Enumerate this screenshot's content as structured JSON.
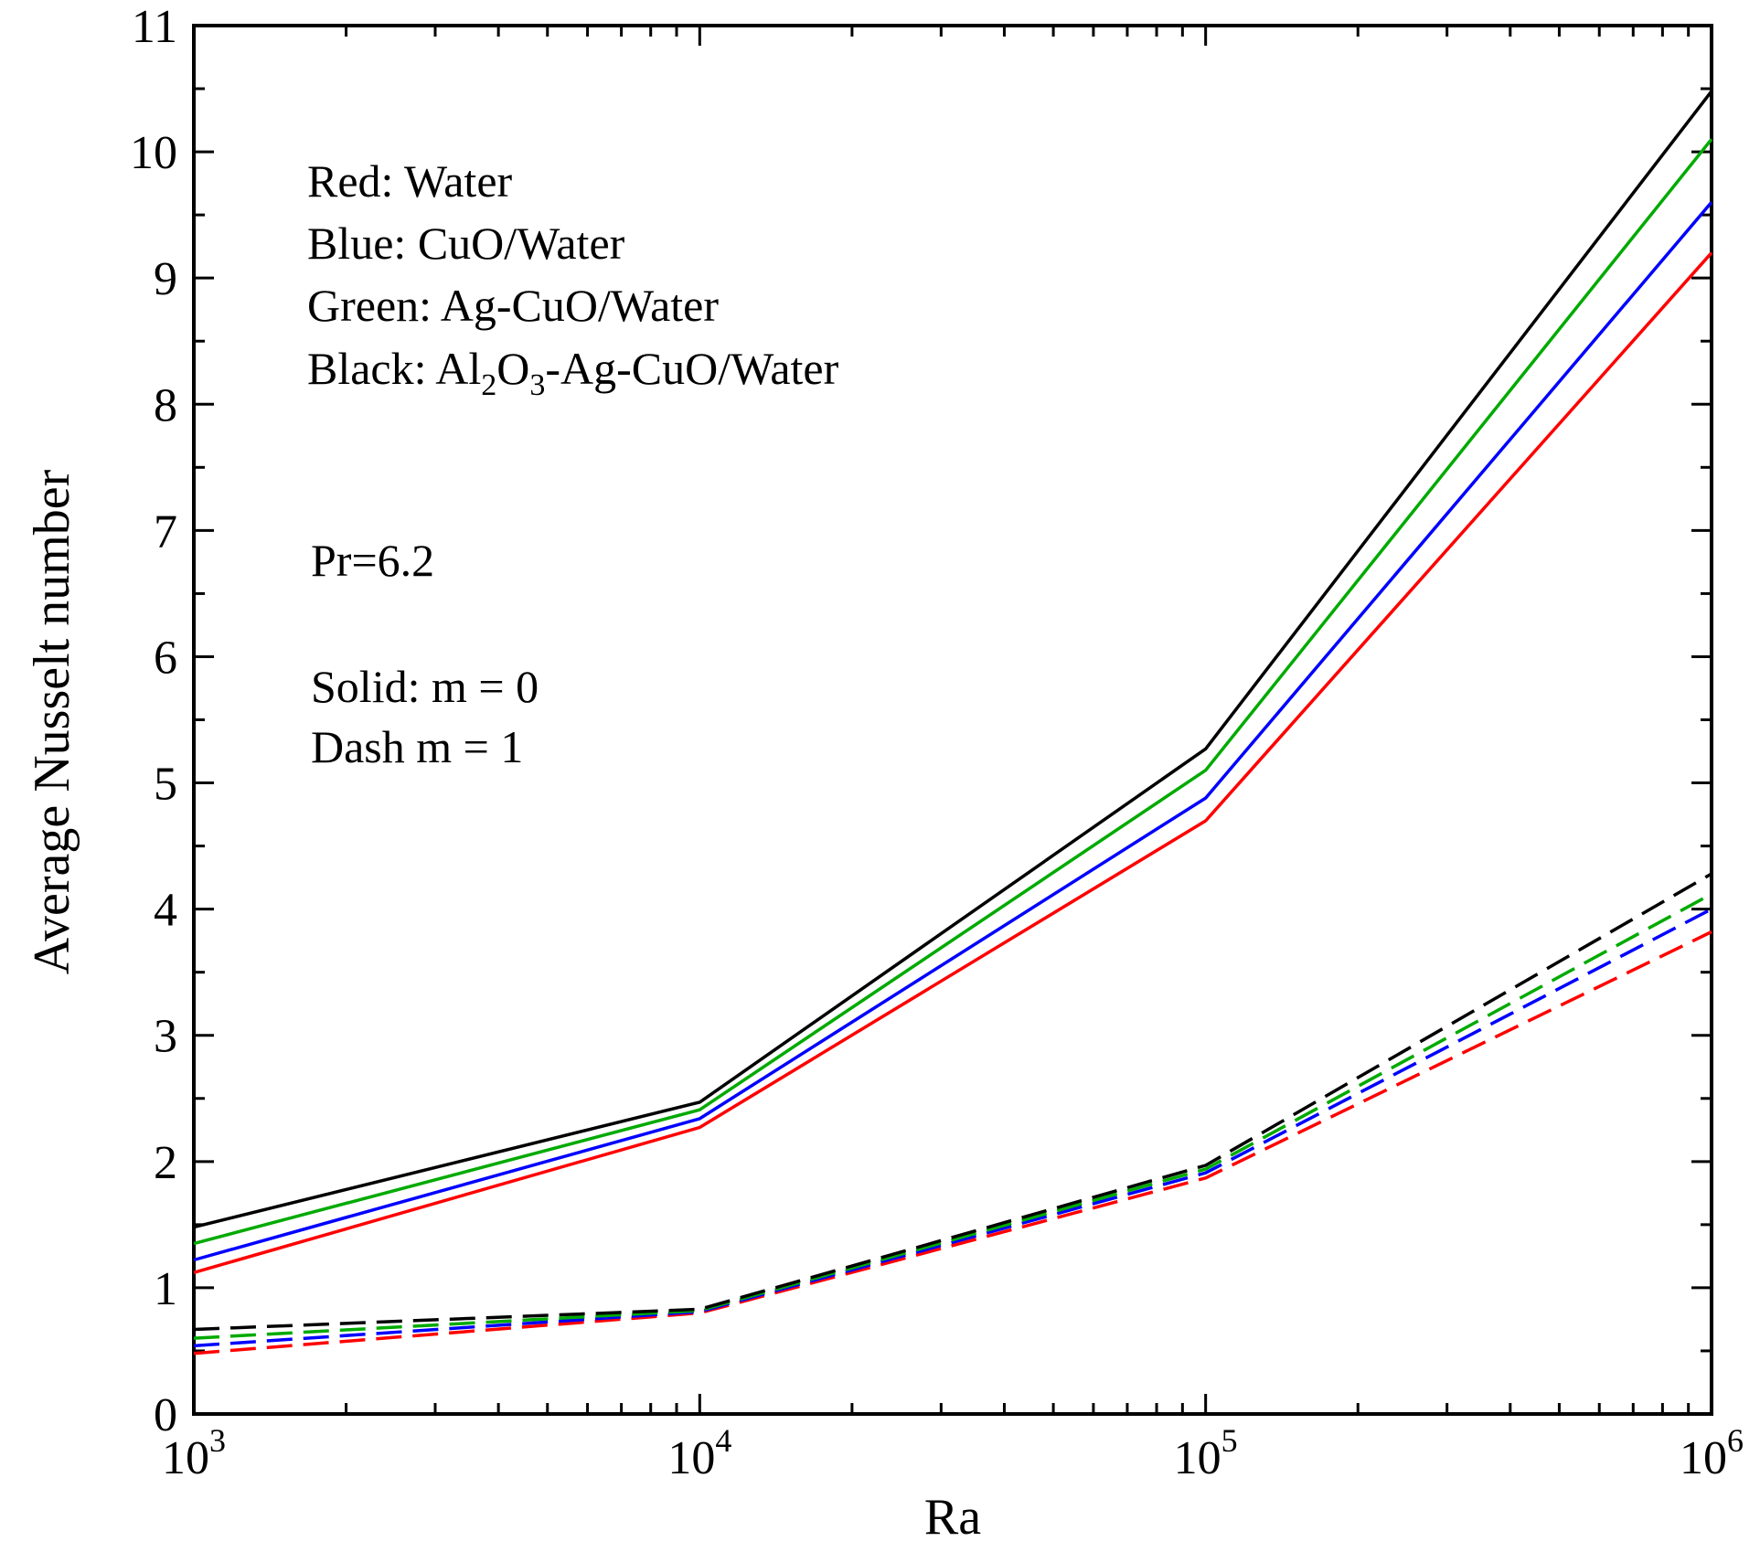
{
  "chart_data": {
    "type": "line",
    "title": "",
    "xlabel": "Ra",
    "ylabel": "Average Nusselt number",
    "xscale": "log",
    "xlim": [
      1000,
      1000000
    ],
    "ylim": [
      0,
      11
    ],
    "grid": false,
    "x": [
      1000,
      10000,
      100000,
      1000000
    ],
    "x_tick_labels": [
      {
        "value": 1000,
        "base": "10",
        "exp": "3"
      },
      {
        "value": 10000,
        "base": "10",
        "exp": "4"
      },
      {
        "value": 100000,
        "base": "10",
        "exp": "5"
      },
      {
        "value": 1000000,
        "base": "10",
        "exp": "6"
      }
    ],
    "y_ticks": [
      0,
      1,
      2,
      3,
      4,
      5,
      6,
      7,
      8,
      9,
      10,
      11
    ],
    "series": [
      {
        "name": "Water, m = 0",
        "color": "#ff0000",
        "style": "solid",
        "values": [
          1.12,
          2.27,
          4.7,
          9.2
        ]
      },
      {
        "name": "CuO/Water, m = 0",
        "color": "#0000ff",
        "style": "solid",
        "values": [
          1.22,
          2.34,
          4.88,
          9.6
        ]
      },
      {
        "name": "Ag-CuO/Water, m = 0",
        "color": "#00aa00",
        "style": "solid",
        "values": [
          1.35,
          2.41,
          5.1,
          10.1
        ]
      },
      {
        "name": "Al2O3-Ag-CuO/Water, m = 0",
        "color": "#000000",
        "style": "solid",
        "values": [
          1.48,
          2.47,
          5.27,
          10.48
        ]
      },
      {
        "name": "Water, m = 1",
        "color": "#ff0000",
        "style": "dash",
        "values": [
          0.48,
          0.8,
          1.87,
          3.82
        ]
      },
      {
        "name": "CuO/Water, m = 1",
        "color": "#0000ff",
        "style": "dash",
        "values": [
          0.54,
          0.81,
          1.91,
          4.0
        ]
      },
      {
        "name": "Ag-CuO/Water, m = 1",
        "color": "#00aa00",
        "style": "dash",
        "values": [
          0.6,
          0.82,
          1.94,
          4.12
        ]
      },
      {
        "name": "Al2O3-Ag-CuO/Water, m = 1",
        "color": "#000000",
        "style": "dash",
        "values": [
          0.67,
          0.83,
          1.97,
          4.28
        ]
      }
    ],
    "legend": {
      "placement": "top-left",
      "red": {
        "label": "Red:",
        "text": "Water"
      },
      "blue": {
        "label": "Blue:",
        "text": "CuO/Water"
      },
      "green": {
        "label": "Green:",
        "text": "Ag-CuO/Water"
      },
      "black": {
        "label": "Black:",
        "parts": [
          "Al",
          "2",
          "O",
          "3",
          "-Ag-CuO/Water"
        ]
      }
    },
    "annotations": {
      "pr": "Pr=6.2",
      "solid": "Solid: m = 0",
      "dash": "Dash m = 1"
    }
  }
}
